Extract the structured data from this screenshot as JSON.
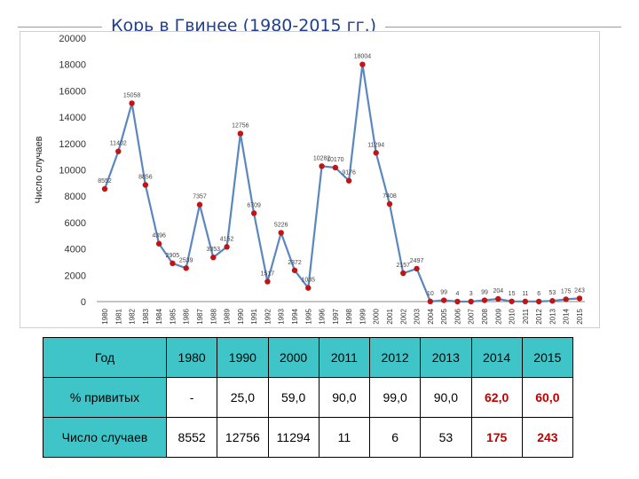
{
  "slide_title": "Корь в Гвинее (1980-2015 гг.)",
  "colors": {
    "line": "#5b87c0",
    "marker": "#c01515",
    "table_header": "#3fc5c8",
    "highlight": "#c00000",
    "title": "#1f3f8f"
  },
  "chart_data": {
    "type": "line",
    "title": "",
    "xlabel": "",
    "ylabel": "Число случаев",
    "ylim": [
      0,
      20000
    ],
    "yticks": [
      "0",
      "2000",
      "4000",
      "6000",
      "8000",
      "10000",
      "12000",
      "14000",
      "16000",
      "18000",
      "20000"
    ],
    "grid": false,
    "x": [
      "1980",
      "1981",
      "1982",
      "1983",
      "1984",
      "1985",
      "1986",
      "1987",
      "1988",
      "1989",
      "1990",
      "1991",
      "1992",
      "1993",
      "1994",
      "1995",
      "1996",
      "1997",
      "1998",
      "1999",
      "2000",
      "2001",
      "2002",
      "2003",
      "2004",
      "2005",
      "2006",
      "2007",
      "2008",
      "2009",
      "2010",
      "2011",
      "2012",
      "2013",
      "2014",
      "2015"
    ],
    "values": [
      8552,
      11402,
      15058,
      8856,
      4396,
      2905,
      2539,
      7357,
      3353,
      4152,
      12756,
      6709,
      1517,
      5226,
      2372,
      1035,
      10282,
      10170,
      9176,
      18004,
      11294,
      7408,
      2157,
      2497,
      10,
      99,
      4,
      3,
      99,
      204,
      15,
      11,
      6,
      53,
      175,
      243
    ],
    "data_labels": [
      "8552",
      "11402",
      "15058",
      "8856",
      "4396",
      "2905",
      "2539",
      "7357",
      "3353",
      "4152",
      "12756",
      "6709",
      "1517",
      "5226",
      "2372",
      "1035",
      "10282",
      "10170",
      "9176",
      "18004",
      "11294",
      "7408",
      "2157",
      "2497",
      "10",
      "99",
      "4",
      "3",
      "99",
      "204",
      "15",
      "11",
      "6",
      "53",
      "175",
      "243"
    ]
  },
  "table": {
    "rows": [
      {
        "label": "Год",
        "cells": [
          "1980",
          "1990",
          "2000",
          "2011",
          "2012",
          "2013",
          "2014",
          "2015"
        ]
      },
      {
        "label": "% привитых",
        "cells": [
          "-",
          "25,0",
          "59,0",
          "90,0",
          "99,0",
          "90,0",
          "62,0",
          "60,0"
        ]
      },
      {
        "label": "Число случаев",
        "cells": [
          "8552",
          "12756",
          "11294",
          "11",
          "6",
          "53",
          "175",
          "243"
        ]
      }
    ],
    "highlight_columns": [
      6,
      7
    ]
  }
}
